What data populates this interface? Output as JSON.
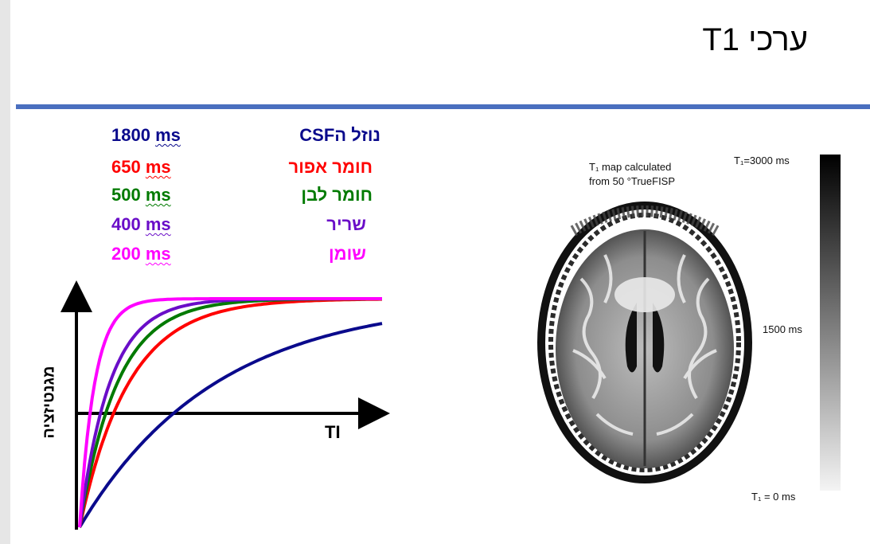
{
  "title": "ערכי T1",
  "tissues": [
    {
      "name": "נוזל הCSF",
      "value": "1800",
      "unit": "ms",
      "color": "#0a0a8c"
    },
    {
      "name": "חומר אפור",
      "value": "650",
      "unit": "ms",
      "color": "#ff0000"
    },
    {
      "name": "חומר לבן",
      "value": "500",
      "unit": "ms",
      "color": "#007a00"
    },
    {
      "name": "שריר",
      "value": "400",
      "unit": "ms",
      "color": "#6a0dc8"
    },
    {
      "name": "שומן",
      "value": "200",
      "unit": "ms",
      "color": "#ff00ff"
    }
  ],
  "chart": {
    "ylabel": "מגנטיזציה",
    "xlabel": "TI"
  },
  "figure": {
    "caption_line1": "T₁ map calculated",
    "caption_line2": "from 50 °TrueFISP",
    "scale_top": "T₁=3000 ms",
    "scale_mid": "1500 ms",
    "scale_bottom": "T₁ = 0 ms"
  }
}
